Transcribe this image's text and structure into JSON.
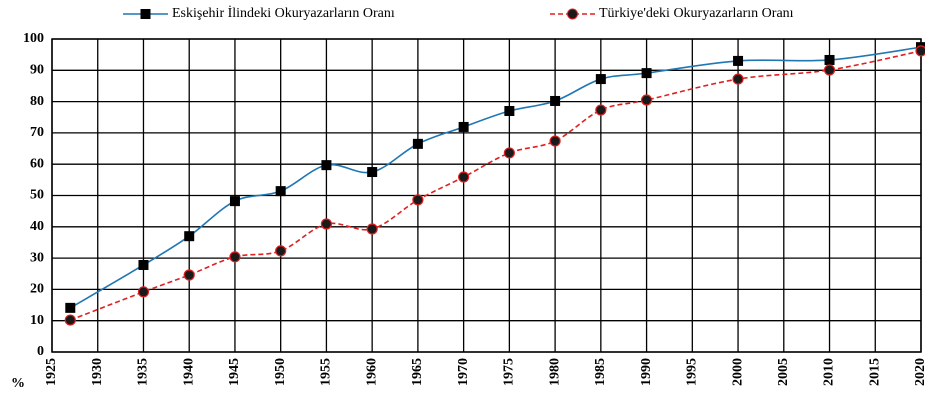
{
  "chart_data": {
    "type": "line",
    "x": [
      1927,
      1935,
      1940,
      1945,
      1950,
      1955,
      1960,
      1965,
      1970,
      1975,
      1980,
      1985,
      1990,
      2000,
      2010,
      2020
    ],
    "series": [
      {
        "name": "Eskişehir İlindeki Okuryazarların Oranı",
        "color": "#1f77b4",
        "marker_color": "#000000",
        "values": [
          14.1,
          27.8,
          37,
          48.2,
          51.4,
          59.7,
          57.5,
          66.5,
          71.9,
          77,
          80.2,
          87.2,
          89.1,
          93,
          93.3,
          97.4
        ]
      },
      {
        "name": "Türkiye'deki Okuryazarların Oranı",
        "color": "#e02020",
        "marker_color": "#1a1a1a",
        "values": [
          10.2,
          19.2,
          24.6,
          30.4,
          32.3,
          40.9,
          39.3,
          48.6,
          55.9,
          63.6,
          67.4,
          77.3,
          80.5,
          87.2,
          90.1,
          96.2
        ]
      }
    ],
    "y_label": "%",
    "xlim": [
      1925,
      2020
    ],
    "xticks": [
      1925,
      1930,
      1935,
      1940,
      1945,
      1950,
      1955,
      1960,
      1965,
      1970,
      1975,
      1980,
      1985,
      1990,
      1995,
      2000,
      2005,
      2010,
      2015,
      2020
    ],
    "ylim": [
      0,
      100
    ],
    "yticks": [
      0,
      10,
      20,
      30,
      40,
      50,
      60,
      70,
      80,
      90,
      100
    ],
    "grid": true,
    "legend": "top"
  }
}
